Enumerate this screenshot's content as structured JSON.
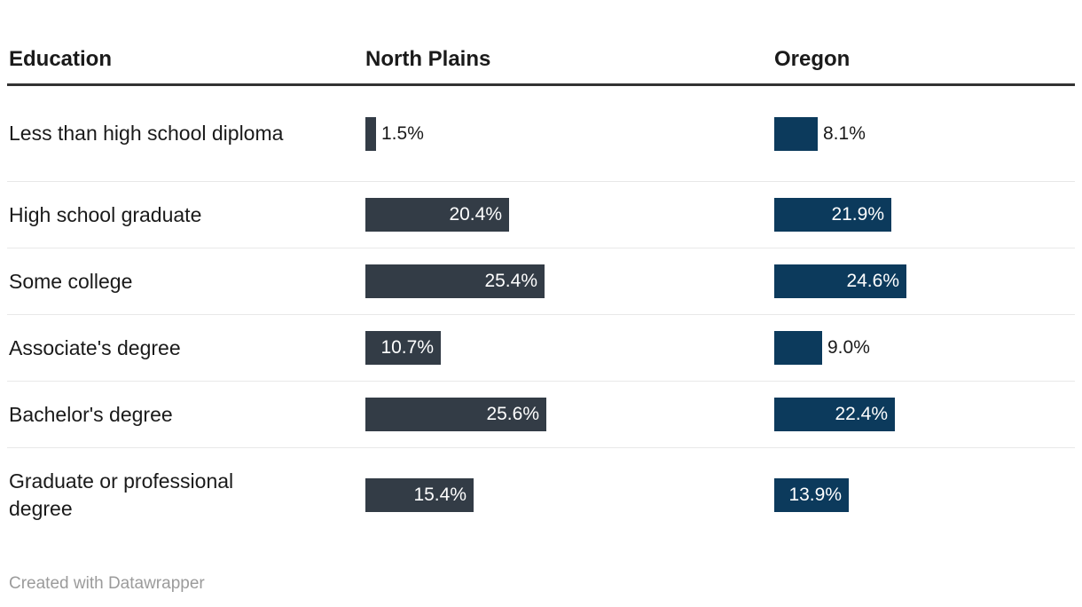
{
  "header": {
    "columns": [
      "Education",
      "North Plains",
      "Oregon"
    ]
  },
  "chart_data": {
    "type": "bar",
    "layout_hint": "table rows with two horizontal bar columns, value labels on bars, no axes or gridlines",
    "categories": [
      "Less than high school diploma",
      "High school graduate",
      "Some college",
      "Associate's degree",
      "Bachelor's degree",
      "Graduate or professional degree"
    ],
    "series": [
      {
        "name": "North Plains",
        "values": [
          1.5,
          20.4,
          25.4,
          10.7,
          25.6,
          15.4
        ],
        "labels": [
          "1.5%",
          "20.4%",
          "25.4%",
          "10.7%",
          "25.6%",
          "15.4%"
        ]
      },
      {
        "name": "Oregon",
        "values": [
          8.1,
          21.9,
          24.6,
          9.0,
          22.4,
          13.9
        ],
        "labels": [
          "8.1%",
          "21.9%",
          "24.6%",
          "9.0%",
          "22.4%",
          "13.9%"
        ]
      }
    ],
    "value_format": "percent",
    "xlim": [
      0,
      26
    ]
  },
  "colors": {
    "north_plains_bar": "#333c46",
    "oregon_bar": "#0c3a5c",
    "header_rule": "#333333",
    "row_separator": "#e8e8e8",
    "text": "#1a1a1a",
    "bar_label_inside": "#ffffff",
    "footer_text": "#9b9b9b"
  },
  "footer": {
    "credit": "Created with Datawrapper"
  }
}
